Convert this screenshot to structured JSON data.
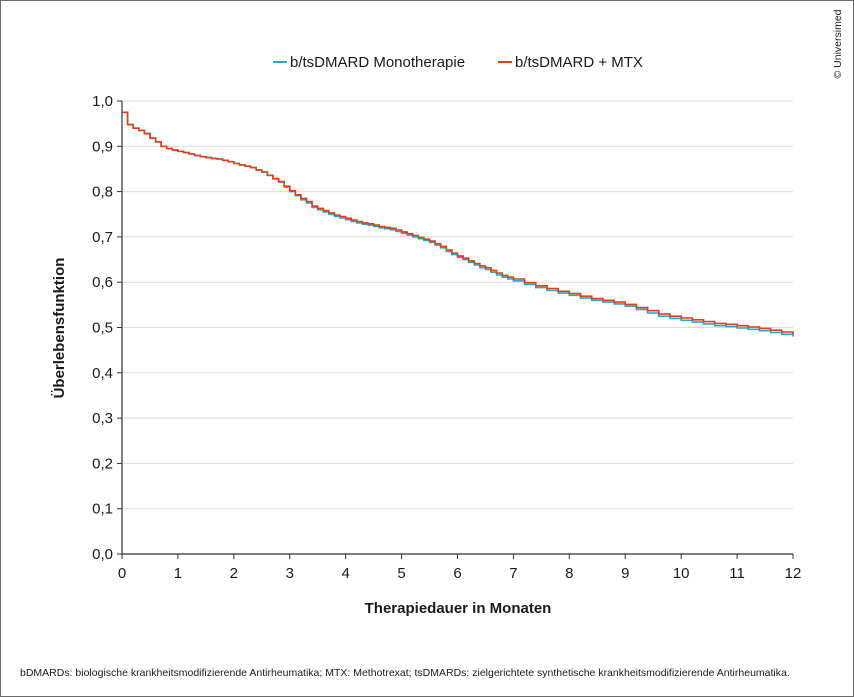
{
  "chart_data": {
    "type": "line",
    "title": "",
    "xlabel": "Therapiedauer in Monaten",
    "ylabel": "Überlebensfunktion",
    "xlim": [
      0,
      12
    ],
    "ylim": [
      0,
      1
    ],
    "x_ticks": [
      "0",
      "1",
      "2",
      "3",
      "4",
      "5",
      "6",
      "7",
      "8",
      "9",
      "10",
      "11",
      "12"
    ],
    "y_ticks": [
      "0,0",
      "0,1",
      "0,2",
      "0,3",
      "0,4",
      "0,5",
      "0,6",
      "0,7",
      "0,8",
      "0,9",
      "1,0"
    ],
    "grid": "horizontal",
    "legend_position": "top-center",
    "step": true,
    "series": [
      {
        "name": "b/tsDMARD Monotherapie",
        "color": "#2aa6c9",
        "x": [
          0,
          0.1,
          0.2,
          0.3,
          0.4,
          0.5,
          0.6,
          0.7,
          0.8,
          0.9,
          1.0,
          1.1,
          1.2,
          1.3,
          1.4,
          1.5,
          1.6,
          1.7,
          1.8,
          1.9,
          2.0,
          2.1,
          2.2,
          2.3,
          2.4,
          2.5,
          2.6,
          2.7,
          2.8,
          2.9,
          3.0,
          3.1,
          3.2,
          3.3,
          3.4,
          3.5,
          3.6,
          3.7,
          3.8,
          3.9,
          4.0,
          4.1,
          4.2,
          4.3,
          4.4,
          4.5,
          4.6,
          4.7,
          4.8,
          4.9,
          5.0,
          5.1,
          5.2,
          5.3,
          5.4,
          5.5,
          5.6,
          5.7,
          5.8,
          5.9,
          6.0,
          6.1,
          6.2,
          6.3,
          6.4,
          6.5,
          6.6,
          6.7,
          6.8,
          6.9,
          7.0,
          7.2,
          7.4,
          7.6,
          7.8,
          8.0,
          8.2,
          8.4,
          8.6,
          8.8,
          9.0,
          9.2,
          9.4,
          9.6,
          9.8,
          10.0,
          10.2,
          10.4,
          10.6,
          10.8,
          11.0,
          11.2,
          11.4,
          11.6,
          11.8,
          12.0
        ],
        "y": [
          0.975,
          0.948,
          0.94,
          0.935,
          0.928,
          0.918,
          0.91,
          0.9,
          0.895,
          0.892,
          0.889,
          0.886,
          0.883,
          0.88,
          0.877,
          0.875,
          0.873,
          0.872,
          0.869,
          0.866,
          0.862,
          0.859,
          0.856,
          0.853,
          0.848,
          0.843,
          0.836,
          0.828,
          0.821,
          0.81,
          0.8,
          0.791,
          0.782,
          0.775,
          0.765,
          0.76,
          0.755,
          0.75,
          0.745,
          0.742,
          0.738,
          0.734,
          0.731,
          0.728,
          0.726,
          0.723,
          0.72,
          0.718,
          0.716,
          0.712,
          0.708,
          0.704,
          0.7,
          0.696,
          0.692,
          0.688,
          0.682,
          0.676,
          0.668,
          0.661,
          0.655,
          0.65,
          0.644,
          0.638,
          0.632,
          0.628,
          0.622,
          0.616,
          0.611,
          0.607,
          0.603,
          0.595,
          0.588,
          0.582,
          0.576,
          0.571,
          0.565,
          0.56,
          0.556,
          0.552,
          0.547,
          0.54,
          0.532,
          0.525,
          0.52,
          0.516,
          0.512,
          0.508,
          0.504,
          0.502,
          0.499,
          0.496,
          0.493,
          0.489,
          0.485,
          0.48
        ]
      },
      {
        "name": "b/tsDMARD + MTX",
        "color": "#d9421a",
        "x": [
          0,
          0.1,
          0.2,
          0.3,
          0.4,
          0.5,
          0.6,
          0.7,
          0.8,
          0.9,
          1.0,
          1.1,
          1.2,
          1.3,
          1.4,
          1.5,
          1.6,
          1.7,
          1.8,
          1.9,
          2.0,
          2.1,
          2.2,
          2.3,
          2.4,
          2.5,
          2.6,
          2.7,
          2.8,
          2.9,
          3.0,
          3.1,
          3.2,
          3.3,
          3.4,
          3.5,
          3.6,
          3.7,
          3.8,
          3.9,
          4.0,
          4.1,
          4.2,
          4.3,
          4.4,
          4.5,
          4.6,
          4.7,
          4.8,
          4.9,
          5.0,
          5.1,
          5.2,
          5.3,
          5.4,
          5.5,
          5.6,
          5.7,
          5.8,
          5.9,
          6.0,
          6.1,
          6.2,
          6.3,
          6.4,
          6.5,
          6.6,
          6.7,
          6.8,
          6.9,
          7.0,
          7.2,
          7.4,
          7.6,
          7.8,
          8.0,
          8.2,
          8.4,
          8.6,
          8.8,
          9.0,
          9.2,
          9.4,
          9.6,
          9.8,
          10.0,
          10.2,
          10.4,
          10.6,
          10.8,
          11.0,
          11.2,
          11.4,
          11.6,
          11.8,
          12.0
        ],
        "y": [
          0.975,
          0.948,
          0.94,
          0.935,
          0.928,
          0.918,
          0.91,
          0.9,
          0.895,
          0.892,
          0.889,
          0.886,
          0.883,
          0.88,
          0.877,
          0.875,
          0.873,
          0.872,
          0.869,
          0.866,
          0.862,
          0.859,
          0.856,
          0.853,
          0.848,
          0.843,
          0.836,
          0.829,
          0.822,
          0.812,
          0.802,
          0.793,
          0.785,
          0.778,
          0.768,
          0.763,
          0.758,
          0.753,
          0.748,
          0.745,
          0.741,
          0.737,
          0.734,
          0.731,
          0.729,
          0.726,
          0.723,
          0.721,
          0.719,
          0.715,
          0.711,
          0.707,
          0.703,
          0.699,
          0.695,
          0.691,
          0.685,
          0.679,
          0.671,
          0.664,
          0.658,
          0.653,
          0.647,
          0.641,
          0.636,
          0.632,
          0.626,
          0.62,
          0.615,
          0.611,
          0.607,
          0.599,
          0.592,
          0.586,
          0.58,
          0.575,
          0.569,
          0.564,
          0.56,
          0.556,
          0.551,
          0.544,
          0.537,
          0.53,
          0.525,
          0.521,
          0.517,
          0.513,
          0.509,
          0.507,
          0.504,
          0.501,
          0.498,
          0.494,
          0.49,
          0.485
        ]
      }
    ]
  },
  "footnote": "bDMARDs: biologische krankheitsmodifizierende Antirheumatika; MTX: Methotrexat; tsDMARDs: zielgerichtete synthetische krankheitsmodifizierende Antirheumatika.",
  "copyright": "© Universimed"
}
